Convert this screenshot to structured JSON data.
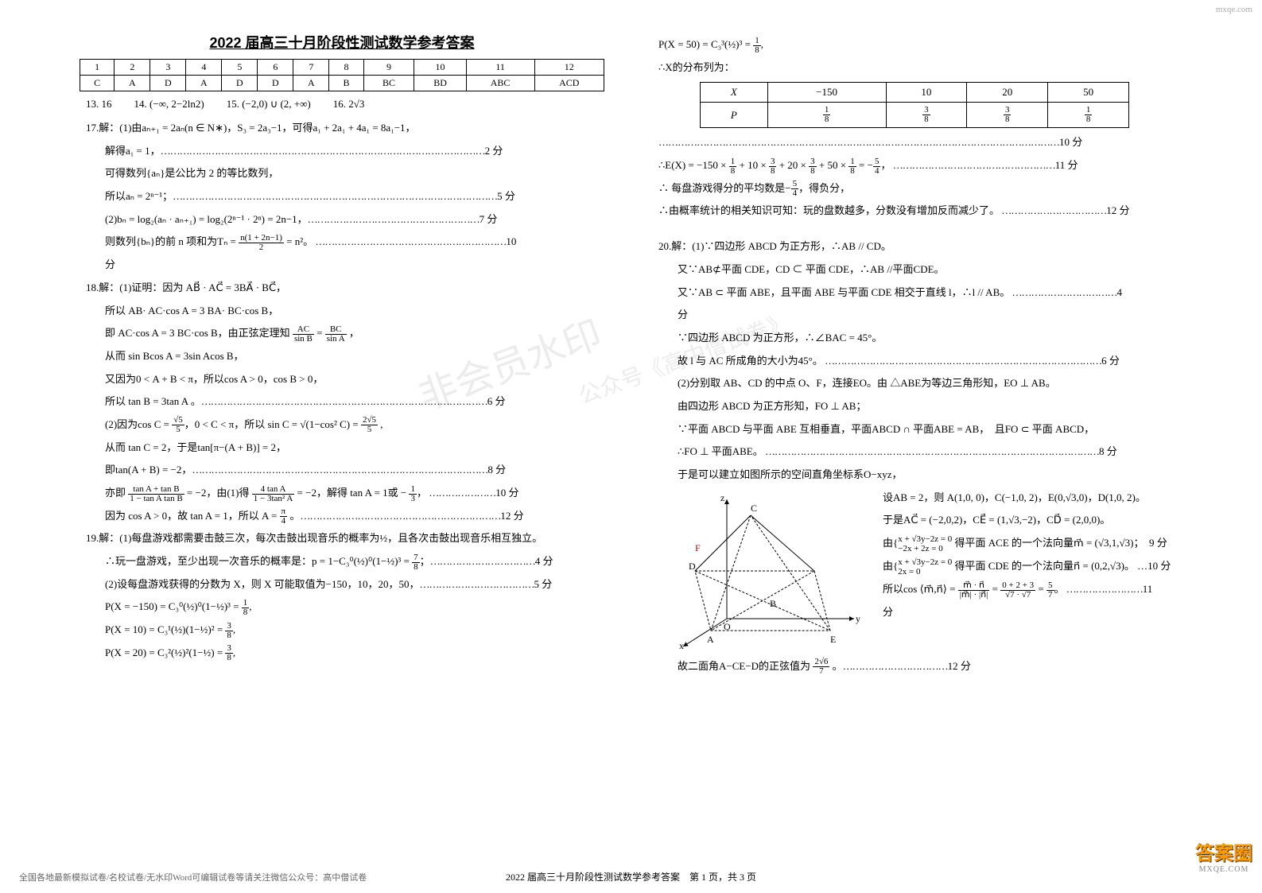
{
  "title": "2022 届高三十月阶段性测试数学参考答案",
  "mc_table": {
    "headers": [
      "1",
      "2",
      "3",
      "4",
      "5",
      "6",
      "7",
      "8",
      "9",
      "10",
      "11",
      "12"
    ],
    "answers": [
      "C",
      "A",
      "D",
      "A",
      "D",
      "D",
      "A",
      "B",
      "BC",
      "BD",
      "ABC",
      "ACD"
    ]
  },
  "fill_blanks": [
    {
      "n": "13",
      "v": "16"
    },
    {
      "n": "14",
      "v": "(−∞, 2−2ln2)"
    },
    {
      "n": "15",
      "v": "(−2,0) ∪ (2, +∞)"
    },
    {
      "n": "16",
      "v": "2√3"
    }
  ],
  "q17": {
    "l1": "17.解：(1)由aₙ₊₁ = 2aₙ(n ∈ N∗)，S₃ = 2a₃−1，可得a₁ + 2a₁ + 4a₁ = 8a₁−1，",
    "l2": "解得a₁ = 1，",
    "p2": "2 分",
    "l3": "可得数列{aₙ}是公比为 2 的等比数列，",
    "l4": "所以aₙ = 2ⁿ⁻¹；",
    "p4": "5 分",
    "l5": "(2)bₙ = log₂(aₙ · aₙ₊₁) = log₂(2ⁿ⁻¹ · 2ⁿ) = 2n−1，",
    "p5": "7 分",
    "l6a": "则数列{bₙ}的前 n 项和为Tₙ = ",
    "l6frac_num": "n(1 + 2n−1)",
    "l6frac_den": "2",
    "l6b": " = n²。",
    "p6": "10",
    "l7": "分"
  },
  "q18": {
    "l1": "18.解：(1)证明：因为 AB⃗ · AC⃗ = 3BA⃗ · BC⃗，",
    "l2": "所以 AB· AC·cos A = 3 BA· BC·cos B，",
    "l3a": "即 AC·cos A = 3 BC·cos B，由正弦定理知 ",
    "l3f1n": "AC",
    "l3f1d": "sin B",
    "l3mid": " = ",
    "l3f2n": "BC",
    "l3f2d": "sin A",
    "l3b": " ，",
    "l4": "从而 sin Bcos A = 3sin Acos B，",
    "l5": "又因为0 < A + B < π，所以cos A > 0，cos B > 0，",
    "l6": "所以 tan B = 3tan A 。",
    "p6": "6 分",
    "l7a": "(2)因为cos C = ",
    "l7f1n": "√5",
    "l7f1d": "5",
    "l7b": "，0 < C < π，所以 sin C = √(1−cos² C) = ",
    "l7f2n": "2√5",
    "l7f2d": "5",
    "l7c": " ,",
    "l8": "从而 tan C = 2，于是tan[π−(A + B)] = 2，",
    "l9": "即tan(A + B) = −2，",
    "p9": "8 分",
    "l10a": "亦即 ",
    "l10f1n": "tan A + tan B",
    "l10f1d": "1 − tan A tan B",
    "l10b": " = −2，由(1)得 ",
    "l10f2n": "4 tan A",
    "l10f2d": "1 − 3tan² A",
    "l10c": " = −2，解得 tan A = 1或 − ",
    "l10f3n": "1",
    "l10f3d": "3",
    "l10d": "，",
    "p10": "10 分",
    "l11a": "因为 cos A > 0，故 tan A = 1，所以 A = ",
    "l11fn": "π",
    "l11fd": "4",
    "l11b": " 。",
    "p11": "12 分"
  },
  "q19": {
    "l1": "19.解：(1)每盘游戏都需要击鼓三次，每次击鼓出现音乐的概率为½，且各次击鼓出现音乐相互独立。",
    "l2a": "∴玩一盘游戏，至少出现一次音乐的概率是：p = 1−C₃⁰(½)⁰(1−½)³ = ",
    "l2fn": "7",
    "l2fd": "8",
    "l2b": "；",
    "p2": "4 分",
    "l3": "(2)设每盘游戏获得的分数为 X，则 X 可能取值为−150，10，20，50，",
    "p3": "5 分",
    "l4a": "P(X = −150) = C₃⁰(½)⁰(1−½)³ = ",
    "l4fn": "1",
    "l4fd": "8",
    "l4b": ",",
    "l5a": "P(X = 10) = C₃¹(½)(1−½)² = ",
    "l5fn": "3",
    "l5fd": "8",
    "l5b": ",",
    "l6a": "P(X = 20) = C₃²(½)²(1−½) = ",
    "l6fn": "3",
    "l6fd": "8",
    "l6b": ",",
    "r1a": "P(X = 50) = C₃³(½)³ = ",
    "r1fn": "1",
    "r1fd": "8",
    "r1b": ",",
    "r2": "∴X的分布列为：",
    "dist_head": [
      "X",
      "−150",
      "10",
      "20",
      "50"
    ],
    "dist_p": "P",
    "dist_vals": [
      {
        "n": "1",
        "d": "8"
      },
      {
        "n": "3",
        "d": "8"
      },
      {
        "n": "3",
        "d": "8"
      },
      {
        "n": "1",
        "d": "8"
      }
    ],
    "pdist": "10 分",
    "r3a": "∴E(X) = −150 × ",
    "r3b": " + 10 × ",
    "r3c": " + 20 × ",
    "r3d": " + 50 × ",
    "r3e": " = −",
    "r3fn": "5",
    "r3fd": "4",
    "r3f": "，",
    "pr3": "11 分",
    "r4": "∴ 每盘游戏得分的平均数是−",
    "r4b": "，得负分，",
    "r5": "∴由概率统计的相关知识可知：玩的盘数越多，分数没有增加反而减少了。",
    "pr5": "12 分"
  },
  "q20": {
    "l1": "20.解：(1)∵四边形 ABCD 为正方形，∴AB // CD。",
    "l2": "又∵AB⊄平面 CDE，CD ⊂ 平面 CDE，∴AB //平面CDE。",
    "l3": "又∵AB ⊂ 平面 ABE，且平面 ABE 与平面 CDE 相交于直线 l，∴l // AB。",
    "p3": "4",
    "l4": "分",
    "l5": "∵四边形 ABCD 为正方形，∴∠BAC = 45°。",
    "l6": "故 l 与 AC 所成角的大小为45°。",
    "p6": "6 分",
    "l7": "(2)分别取 AB、CD 的中点 O、F，连接EO。由 △ABE为等边三角形知，EO ⊥ AB。",
    "l8": "由四边形 ABCD 为正方形知，FO ⊥ AB；",
    "l9": "∵平面 ABCD 与平面 ABE 互相垂直，平面ABCD ∩ 平面ABE = AB，　且FO ⊂ 平面 ABCD，",
    "l10": "∴FO ⊥ 平面ABE。",
    "p10": "8 分",
    "l11": "于是可以建立如图所示的空间直角坐标系O−xyz，",
    "l12": "设AB = 2，则 A(1,0, 0)，C(−1,0, 2)，E(0,√3,0)，D(1,0, 2)。",
    "l13": "于是AC⃗ = (−2,0,2)，CE⃗ = (1,√3,−2)，CD⃗ = (2,0,0)。",
    "l14a": "由{",
    "l14b1": "x + √3y−2z = 0",
    "l14b2": "−2x + 2z = 0",
    "l14c": "得平面 ACE 的一个法向量m⃗ = (√3,1,√3)；",
    "p14": "9 分",
    "l15a": "由{",
    "l15b1": "x + √3y−2z = 0",
    "l15b2": "2x = 0",
    "l15c": "得平面 CDE 的一个法向量n⃗ = (0,2,√3)。",
    "p15": "10 分",
    "l16a": "所以cos ⟨m⃗,n⃗⟩ = ",
    "l16f1n": "m⃗ · n⃗",
    "l16f1d": "|m⃗| · |n⃗|",
    "l16b": " = ",
    "l16f2n": "0 + 2 + 3",
    "l16f2d": "√7 · √7",
    "l16c": " = ",
    "l16f3n": "5",
    "l16f3d": "7",
    "l16d": "。",
    "p16": "11",
    "l17": "分",
    "l18a": "故二面角A−CE−D的正弦值为 ",
    "l18fn": "2√6",
    "l18fd": "7",
    "l18b": " 。",
    "p18": "12 分"
  },
  "watermarks": {
    "w1": "非会员水印",
    "w2": "公众号《高中僧试卷》"
  },
  "footer": {
    "left": "全国各地最新模拟试卷/名校试卷/无水印Word可编辑试卷等请关注微信公众号：高中僧试卷",
    "center": "2022 届高三十月阶段性测试数学参考答案　第 1 页，共 3 页"
  },
  "brand": {
    "top": "mxqe.com",
    "logo": "答案圈",
    "sub": "MXQE.COM"
  }
}
